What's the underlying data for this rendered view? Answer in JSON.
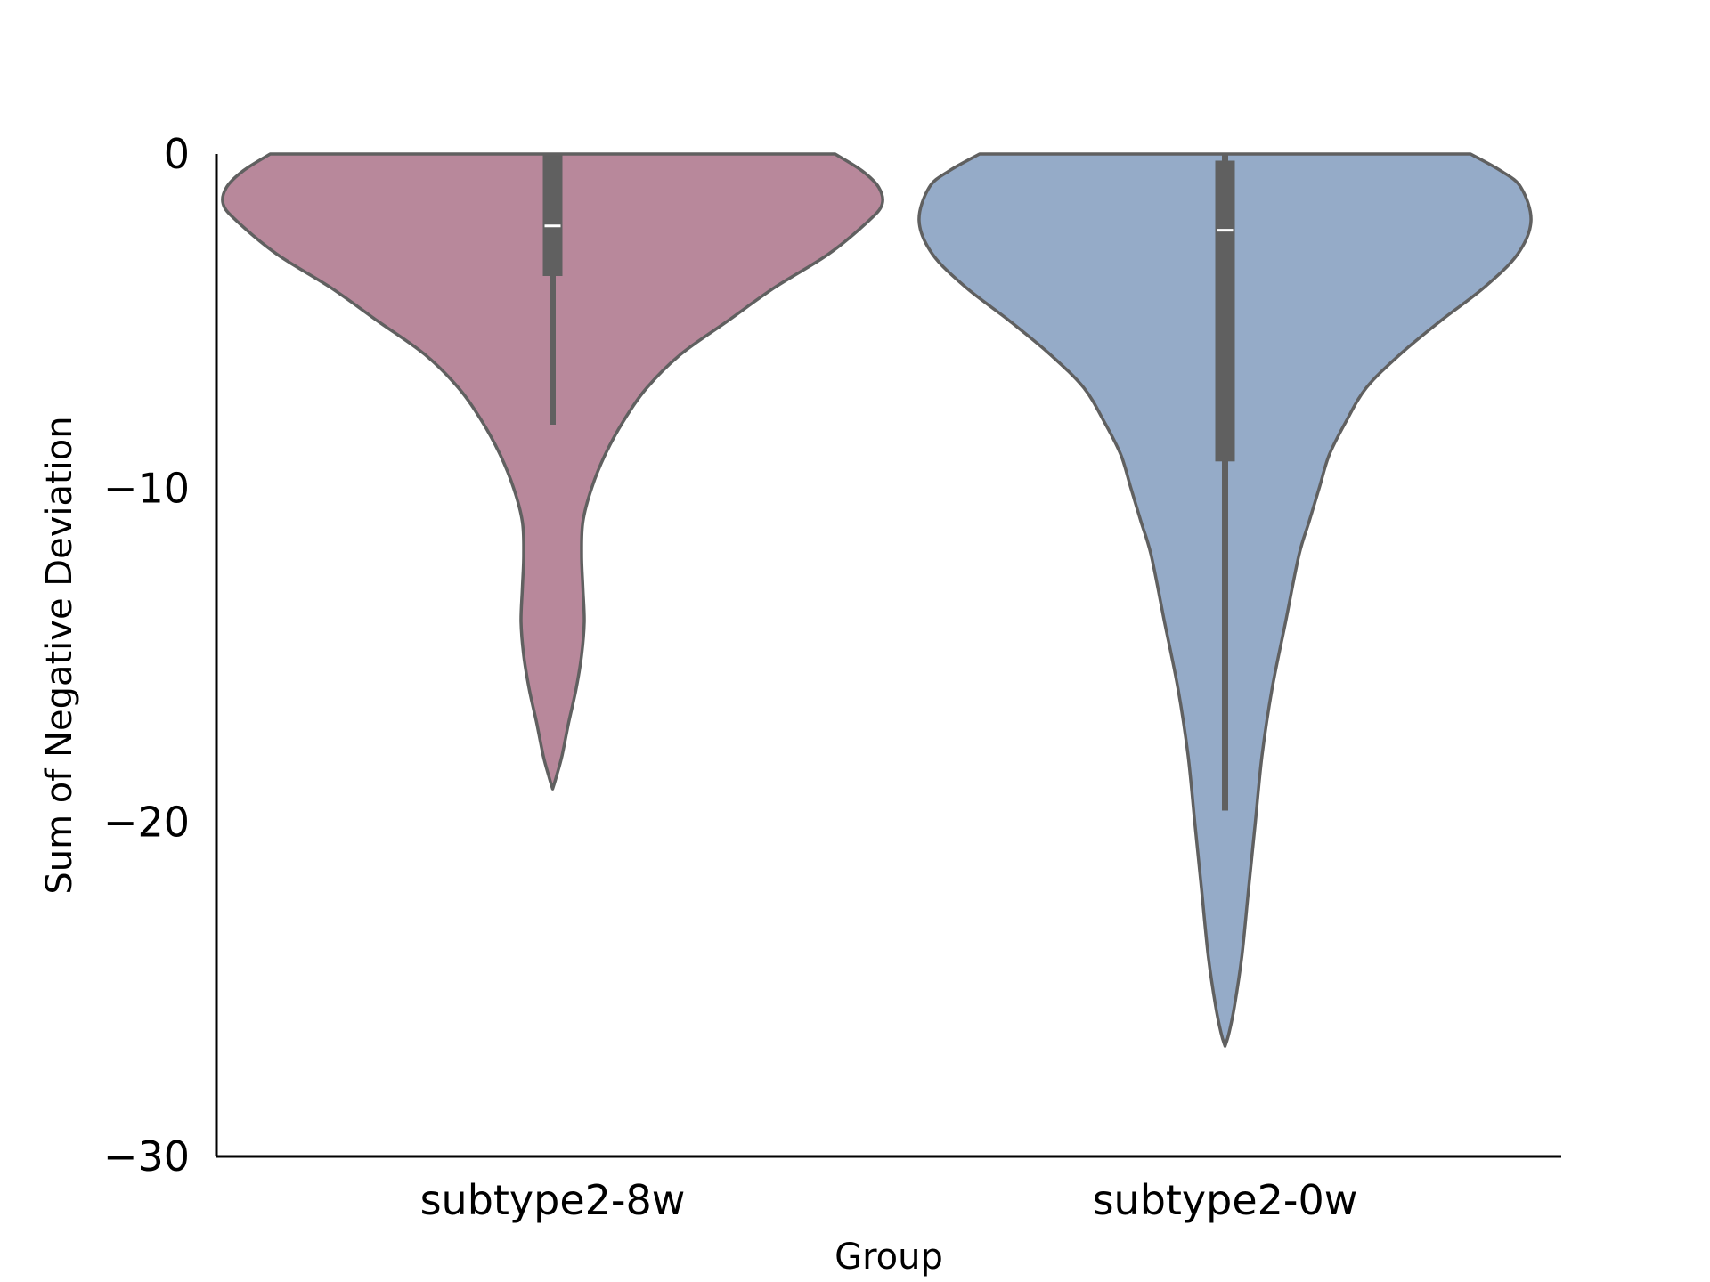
{
  "chart_data": {
    "type": "violin",
    "title": "",
    "xlabel": "Group",
    "ylabel": "Sum of Negative Deviation",
    "ylim": [
      -30,
      0
    ],
    "yticks": [
      0,
      -10,
      -20,
      -30
    ],
    "ytick_labels": [
      "0",
      "−10",
      "−20",
      "−30"
    ],
    "grid": false,
    "legend": "none",
    "edge_color": "#606060",
    "categories": [
      "subtype2-8w",
      "subtype2-0w"
    ],
    "violins": [
      {
        "category": "subtype2-8w",
        "color": "#b8889b",
        "median": -2.15,
        "q1": -3.65,
        "q3": 0,
        "whisker_low": -8.1,
        "whisker_high": 0,
        "min": -19.0,
        "density_profile": [
          [
            0.0,
            0.42
          ],
          [
            -0.5,
            0.46
          ],
          [
            -1.0,
            0.485
          ],
          [
            -1.5,
            0.49
          ],
          [
            -2.0,
            0.47
          ],
          [
            -3.0,
            0.41
          ],
          [
            -4.0,
            0.33
          ],
          [
            -5.0,
            0.26
          ],
          [
            -6.0,
            0.19
          ],
          [
            -7.0,
            0.14
          ],
          [
            -8.0,
            0.105
          ],
          [
            -9.0,
            0.078
          ],
          [
            -10.0,
            0.058
          ],
          [
            -11.0,
            0.045
          ],
          [
            -12.0,
            0.043
          ],
          [
            -13.0,
            0.045
          ],
          [
            -14.0,
            0.047
          ],
          [
            -15.0,
            0.043
          ],
          [
            -16.0,
            0.035
          ],
          [
            -17.0,
            0.024
          ],
          [
            -18.0,
            0.014
          ],
          [
            -18.6,
            0.006
          ],
          [
            -19.0,
            0.0
          ]
        ]
      },
      {
        "category": "subtype2-0w",
        "color": "#95abc8",
        "median": -2.28,
        "q1": -9.2,
        "q3": -0.2,
        "whisker_low": -19.65,
        "whisker_high": 0,
        "min": -26.7,
        "density_profile": [
          [
            0.0,
            0.365
          ],
          [
            -0.5,
            0.41
          ],
          [
            -1.0,
            0.44
          ],
          [
            -2.0,
            0.455
          ],
          [
            -3.0,
            0.435
          ],
          [
            -4.0,
            0.385
          ],
          [
            -5.0,
            0.32
          ],
          [
            -6.0,
            0.26
          ],
          [
            -7.0,
            0.21
          ],
          [
            -8.0,
            0.18
          ],
          [
            -9.0,
            0.155
          ],
          [
            -10.0,
            0.14
          ],
          [
            -11.0,
            0.125
          ],
          [
            -12.0,
            0.11
          ],
          [
            -14.0,
            0.09
          ],
          [
            -16.0,
            0.07
          ],
          [
            -18.0,
            0.055
          ],
          [
            -20.0,
            0.045
          ],
          [
            -22.0,
            0.035
          ],
          [
            -24.0,
            0.025
          ],
          [
            -25.5,
            0.014
          ],
          [
            -26.3,
            0.006
          ],
          [
            -26.7,
            0.0
          ]
        ]
      }
    ]
  }
}
